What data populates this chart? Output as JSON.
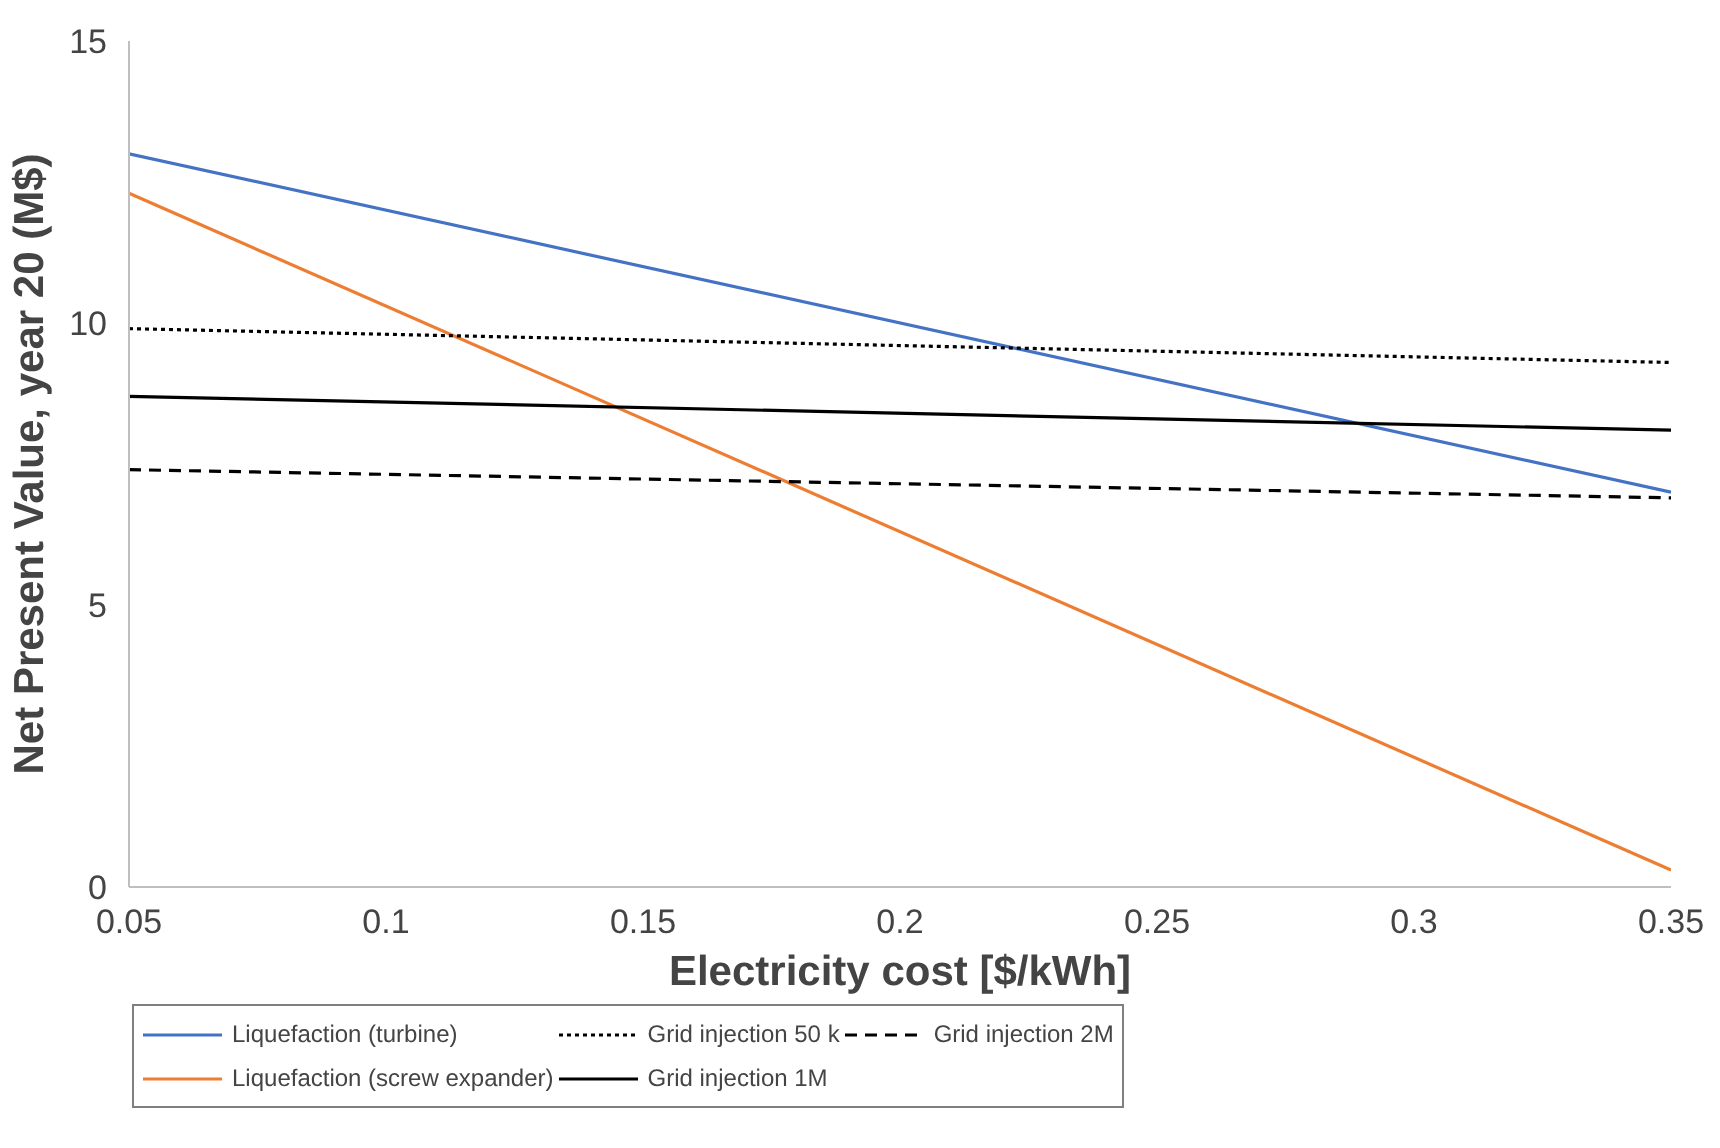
{
  "chart_data": {
    "type": "line",
    "xlabel": "Electricity cost [$/kWh]",
    "ylabel": "Net Present Value, year 20 (M$)",
    "x": [
      0.05,
      0.35
    ],
    "xlim": [
      0.05,
      0.35
    ],
    "xticks": [
      0.05,
      0.1,
      0.15,
      0.2,
      0.25,
      0.3,
      0.35
    ],
    "ylim": [
      0,
      15
    ],
    "yticks": [
      0,
      5,
      10,
      15
    ],
    "grid": false,
    "legend": "bottom",
    "marker": "none",
    "series": [
      {
        "name": "Liquefaction (turbine)",
        "color": "#4472c4",
        "line_style": "solid",
        "values": [
          13.0,
          7.0
        ]
      },
      {
        "name": "Liquefaction (screw expander)",
        "color": "#ed7d31",
        "line_style": "solid",
        "values": [
          12.3,
          0.3
        ]
      },
      {
        "name": "Grid injection 50 k",
        "color": "#000000",
        "line_style": "dotted",
        "values": [
          9.9,
          9.3
        ]
      },
      {
        "name": "Grid injection 1M",
        "color": "#000000",
        "line_style": "solid",
        "values": [
          8.7,
          8.1
        ]
      },
      {
        "name": "Grid injection 2M",
        "color": "#000000",
        "line_style": "dashed",
        "values": [
          7.4,
          6.9
        ]
      }
    ]
  }
}
